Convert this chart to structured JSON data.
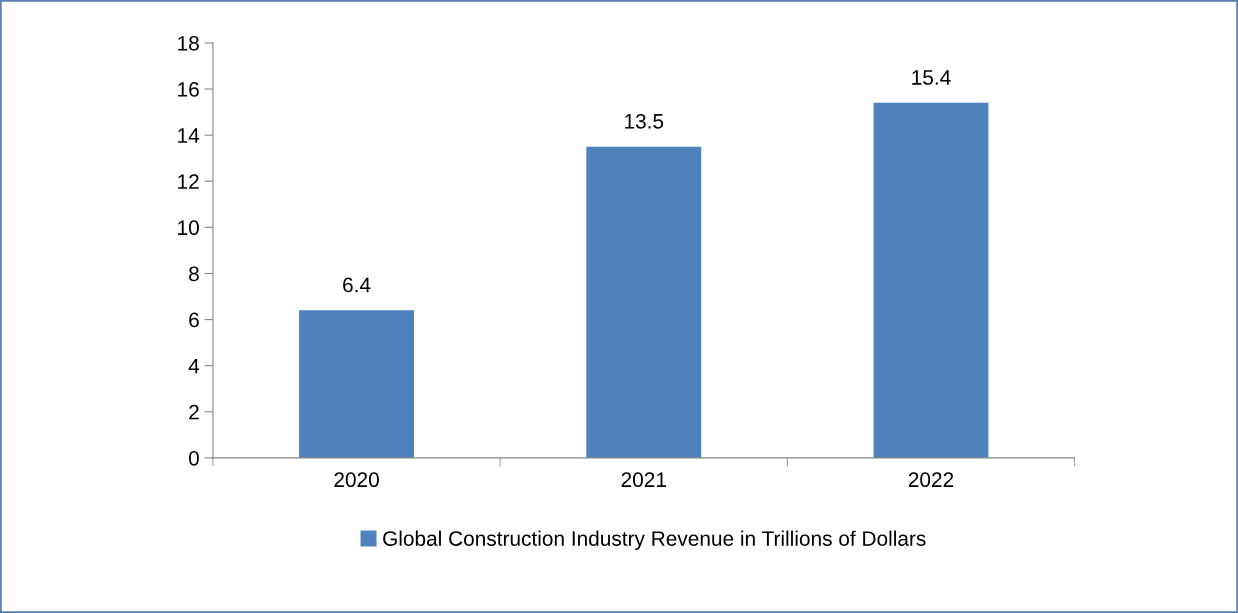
{
  "chart_data": {
    "type": "bar",
    "categories": [
      "2020",
      "2021",
      "2022"
    ],
    "series": [
      {
        "name": "Global Construction Industry Revenue in Trillions of Dollars",
        "color": "#4f81bd",
        "values": [
          6.4,
          13.5,
          15.4
        ]
      }
    ],
    "ylim": [
      0,
      18
    ],
    "yticks": [
      0,
      2,
      4,
      6,
      8,
      10,
      12,
      14,
      16,
      18
    ],
    "data_labels": true,
    "grid": false,
    "legend": "bottom"
  }
}
